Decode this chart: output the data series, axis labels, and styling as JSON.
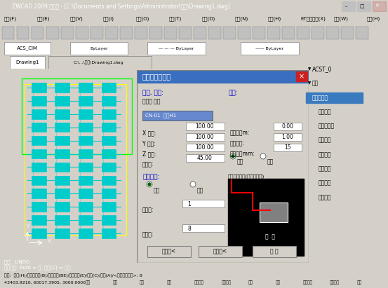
{
  "title_bar": "ZWCAD 2009 专业版 - [C:\\Documents and Settings\\Administrator\\桌面\\Drawing1.dwg]",
  "menu_items": [
    "文件(F)",
    "编辑(E)",
    "视图(V)",
    "插入(I)",
    "格式(O)",
    "工具(T)",
    "绘图(D)",
    "标注(N)",
    "修改(H)",
    "ET扩展工具(X)",
    "窗口(W)",
    "帮助(H)"
  ],
  "tab_left": "Drawing1",
  "tab_path": "C:\\...\\桌面\\Drawing1.dwg",
  "right_panel_items": [
    "ACST_0",
    "采暖",
    "自动系统图",
    "绘系统图",
    "替换散热器",
    "立管加阀",
    "立管移动",
    "立管消隐",
    "自动断线",
    "立管修正"
  ],
  "dialog_title": "采暖系统图生成",
  "dialog_labels": {
    "ratio_angle": "比例, 角度:",
    "params": "参数:",
    "system_name_type": "系统名 类型",
    "x_ratio": "X 比例:",
    "y_ratio": "Y 比例:",
    "z_ratio": "Z 比例:",
    "oblique_angle": "斜侧角:",
    "x_ratio_val": "100.00",
    "y_ratio_val": "100.00",
    "z_ratio_val": "100.00",
    "oblique_val": "45.00",
    "ground_height": "地面高度m:",
    "block_ratio": "图块比例:",
    "pipe_diameter": "接管直径mm:",
    "upper": "上供",
    "lower": "下供",
    "ground_val": "0.00",
    "block_val": "1.00",
    "pipe_val": "15",
    "draw_method": "绘制方式:",
    "all": "全部",
    "by_layer": "分层",
    "single_pipe_label": "单管上供下回(选管管方式)",
    "start_layer": "起始层:",
    "end_layer": "结束层:",
    "start_val": "1",
    "end_val": "8",
    "btn_preview": "输则图<",
    "btn_expand": "展开图<",
    "btn_exit": "退 出"
  },
  "bg_color_title": "#3a6fbf",
  "bg_color_window": "#d4d0c8",
  "bg_color_cad": "#000000",
  "bg_color_dialog": "#d4d0c8",
  "cad_draw_color": "#00ffff",
  "cad_line_color": "#ffff00",
  "status_bar_bg": "#00007f",
  "status_bar_text_color": "#ffffff",
  "bottom_bar_bg": "#d4d0c8"
}
